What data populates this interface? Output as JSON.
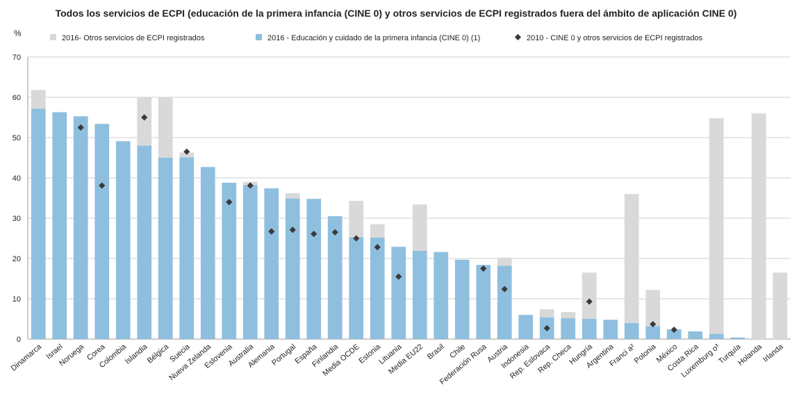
{
  "chart_data": {
    "type": "bar",
    "title": "Todos los servicios de ECPI (educación de la primera infancia (CINE 0) y otros servicios de ECPI registrados fuera del ámbito de aplicación CINE 0)",
    "ylabel": "%",
    "ylim": [
      0,
      70
    ],
    "yticks": [
      0,
      10,
      20,
      30,
      40,
      50,
      60,
      70
    ],
    "grid": true,
    "legend_position": "top",
    "categories": [
      "Dinamarca",
      "Israel",
      "Noruega",
      "Corea",
      "Colombia",
      "Islandia",
      "Bélgica",
      "Suecia",
      "Nueva Zelanda",
      "Eslovenia",
      "Australia",
      "Alemania",
      "Portugal",
      "España",
      "Finlandia",
      "Media OCDE",
      "Estonia",
      "Lituania",
      "Media EU22",
      "Brasil",
      "Chile",
      "Federación Rusa",
      "Austria",
      "Indonesia",
      "Rep. Eslovaca",
      "Rep. Checa",
      "Hungría",
      "Argentina",
      "Franci a²",
      "Polonia",
      "México",
      "Costa Rica",
      "Luxemburg o³",
      "Turquía",
      "Holanda",
      "Irlanda"
    ],
    "series": [
      {
        "name": "2016- Otros servicios de ECPI registrados",
        "kind": "stacked-bar",
        "color": "#d9d9d9",
        "values": [
          4.6,
          0,
          0,
          0,
          0,
          12.0,
          15.0,
          1.2,
          0,
          0,
          0.8,
          0,
          1.3,
          0,
          0,
          9.0,
          3.3,
          0,
          11.5,
          0,
          0,
          0,
          2.0,
          0,
          2.0,
          1.5,
          11.5,
          0,
          32.0,
          9.0,
          0,
          0,
          53.5,
          0,
          56.0,
          16.5
        ]
      },
      {
        "name": "2016 - Educación y cuidado de la primera infancia (CINE 0) (1)",
        "kind": "bar",
        "color": "#8fbfdf",
        "values": [
          57.2,
          56.3,
          55.3,
          53.4,
          49.1,
          48.0,
          45.0,
          45.1,
          42.7,
          38.8,
          38.2,
          37.4,
          34.9,
          34.8,
          30.5,
          25.3,
          25.2,
          22.9,
          21.9,
          21.6,
          19.7,
          18.4,
          18.2,
          6.0,
          5.4,
          5.2,
          5.0,
          4.8,
          4.0,
          3.2,
          2.4,
          1.9,
          1.3,
          0.4,
          0,
          0
        ]
      },
      {
        "name": "2010 - CINE 0 y otros servicios de ECPI registrados",
        "kind": "marker",
        "color": "#3a3a3a",
        "values": [
          null,
          null,
          52.5,
          38.1,
          null,
          55.0,
          null,
          46.5,
          null,
          34.0,
          38.1,
          26.7,
          27.1,
          26.1,
          26.5,
          25.0,
          22.8,
          15.5,
          null,
          null,
          null,
          17.5,
          12.4,
          null,
          2.7,
          null,
          9.3,
          null,
          null,
          3.7,
          2.3,
          null,
          null,
          null,
          null,
          null
        ]
      }
    ]
  }
}
